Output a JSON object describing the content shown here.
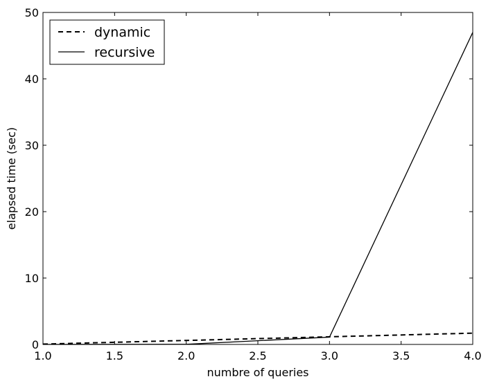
{
  "chart_data": {
    "type": "line",
    "title": "",
    "xlabel": "numbre of queries",
    "ylabel": "elapsed time (sec)",
    "xlim": [
      1.0,
      4.0
    ],
    "ylim": [
      0,
      50
    ],
    "x_ticks": [
      1.0,
      1.5,
      2.0,
      2.5,
      3.0,
      3.5,
      4.0
    ],
    "x_tick_labels": [
      "1.0",
      "1.5",
      "2.0",
      "2.5",
      "3.0",
      "3.5",
      "4.0"
    ],
    "y_ticks": [
      0,
      10,
      20,
      30,
      40,
      50
    ],
    "y_tick_labels": [
      "0",
      "10",
      "20",
      "30",
      "40",
      "50"
    ],
    "grid": false,
    "legend_position": "top-left",
    "series": [
      {
        "name": "dynamic",
        "style": "dashed",
        "color": "#000000",
        "x": [
          1.0,
          2.0,
          3.0,
          4.0
        ],
        "y": [
          0.05,
          0.6,
          1.15,
          1.7
        ]
      },
      {
        "name": "recursive",
        "style": "solid",
        "color": "#000000",
        "x": [
          1.0,
          2.0,
          3.0,
          4.0
        ],
        "y": [
          0.0,
          0.02,
          1.1,
          47.0
        ]
      }
    ]
  }
}
